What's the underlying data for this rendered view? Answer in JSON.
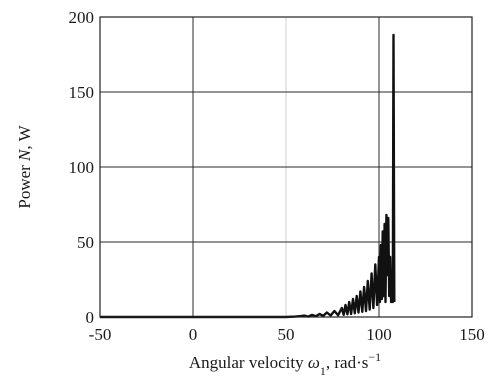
{
  "chart_data": {
    "type": "line",
    "title": "",
    "xlabel": {
      "prefix": "Angular velocity ",
      "symbol": "ω",
      "subscript": "1",
      "unit": ", rad·s",
      "unit_exp": "−1"
    },
    "ylabel": {
      "prefix": "Power ",
      "symbol": "N",
      "unit": ", W"
    },
    "xlim": [
      -50,
      150
    ],
    "ylim": [
      0,
      200
    ],
    "xticks": [
      -50,
      0,
      50,
      100,
      150
    ],
    "yticks": [
      0,
      50,
      100,
      150,
      200
    ],
    "xtick_labels": [
      "-50",
      "0",
      "50",
      "100",
      "150"
    ],
    "ytick_labels": [
      "0",
      "50",
      "100",
      "150",
      "200"
    ],
    "grid": true,
    "legend": "none",
    "series": [
      {
        "color": "#111111",
        "x": [
          -50,
          0,
          50,
          55,
          58,
          60,
          62,
          64,
          66,
          68,
          70,
          72,
          74,
          76,
          78,
          80,
          81,
          82,
          83,
          84,
          85,
          86,
          87,
          88,
          89,
          90,
          91,
          92,
          93,
          94,
          95,
          96,
          97,
          98,
          99,
          100,
          100.5,
          101,
          101.5,
          102,
          102.5,
          103,
          103.5,
          104,
          104.5,
          105,
          105.5,
          106,
          106.5,
          107,
          107.4,
          107.8,
          108.2
        ],
        "y": [
          0,
          0,
          0,
          0.3,
          0.6,
          0.9,
          0.3,
          1.4,
          0.5,
          2.0,
          0.8,
          3.0,
          1.0,
          4.0,
          1.2,
          6.0,
          1.5,
          8.0,
          1.8,
          10.0,
          2.0,
          12.0,
          2.5,
          14.0,
          3.0,
          17.0,
          3.5,
          20.0,
          4.0,
          24.0,
          5.0,
          29.0,
          6.0,
          35.0,
          8.0,
          40.0,
          10.0,
          48.0,
          12.0,
          57.0,
          14.0,
          62.0,
          10.0,
          68.0,
          28.0,
          66.0,
          14.0,
          40.0,
          10.0,
          30.0,
          10.0,
          188.0,
          10.0
        ]
      }
    ]
  }
}
